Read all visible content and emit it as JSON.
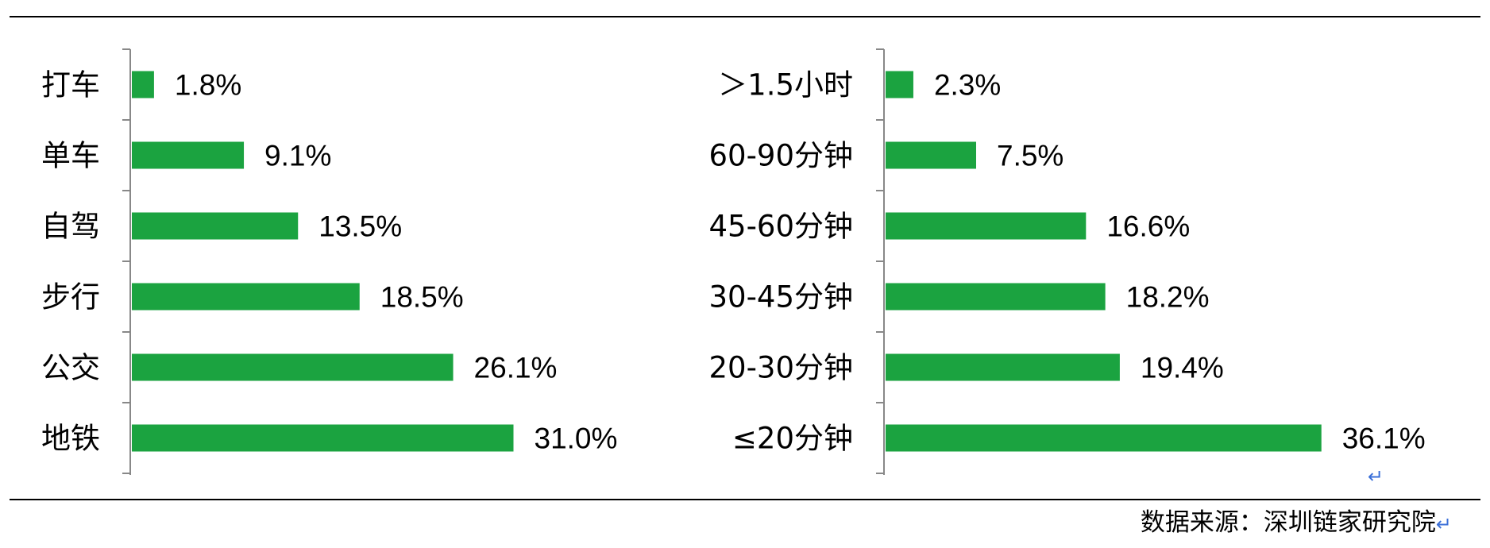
{
  "chart_data": [
    {
      "type": "bar",
      "orientation": "horizontal",
      "categories": [
        "打车",
        "单车",
        "自驾",
        "步行",
        "公交",
        "地铁"
      ],
      "values": [
        1.8,
        9.1,
        13.5,
        18.5,
        26.1,
        31.0
      ],
      "value_labels": [
        "1.8%",
        "9.1%",
        "13.5%",
        "18.5%",
        "26.1%",
        "31.0%"
      ],
      "color": "#1ba340",
      "grid": false,
      "legend": "none"
    },
    {
      "type": "bar",
      "orientation": "horizontal",
      "categories": [
        "＞1.5小时",
        "60-90分钟",
        "45-60分钟",
        "30-45分钟",
        "20-30分钟",
        "≤20分钟"
      ],
      "values": [
        2.3,
        7.5,
        16.6,
        18.2,
        19.4,
        36.1
      ],
      "value_labels": [
        "2.3%",
        "7.5%",
        "16.6%",
        "18.2%",
        "19.4%",
        "36.1%"
      ],
      "color": "#1ba340",
      "grid": false,
      "legend": "none"
    }
  ],
  "footer": {
    "source": "数据来源：深圳链家研究院"
  },
  "colors": {
    "bar": "#1ba340",
    "axis": "#888888",
    "return_mark": "#3a6fd8"
  }
}
